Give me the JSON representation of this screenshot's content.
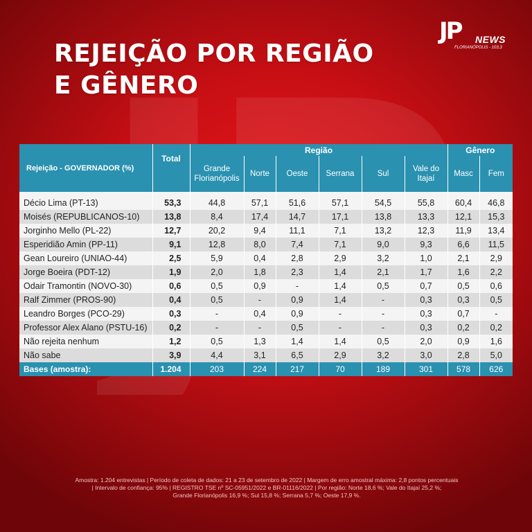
{
  "title_line1": "REJEIÇÃO POR REGIÃO",
  "title_line2": "E GÊNERO",
  "logo": {
    "mark": "JP",
    "word": "NEWS",
    "city": "FLORIANÓPOLIS - 103,3"
  },
  "colors": {
    "header": "#2a91b0",
    "background": "#c80f14",
    "row_light": "#f4f4f4",
    "row_dark": "#dcdcdc"
  },
  "chart_data": {
    "type": "table",
    "row_header_label": "Rejeição - GOVERNADOR (%)",
    "total_label": "Total",
    "group_labels": {
      "regiao": "Região",
      "genero": "Gênero"
    },
    "columns": [
      "Grande Florianópolis",
      "Norte",
      "Oeste",
      "Serrana",
      "Sul",
      "Vale do Itajaí",
      "Masc",
      "Fem"
    ],
    "rows": [
      {
        "name": "Décio Lima (PT-13)",
        "total": "53,3",
        "values": [
          "44,8",
          "57,1",
          "51,6",
          "57,1",
          "54,5",
          "55,8",
          "60,4",
          "46,8"
        ]
      },
      {
        "name": "Moisés (REPUBLICANOS-10)",
        "total": "13,8",
        "values": [
          "8,4",
          "17,4",
          "14,7",
          "17,1",
          "13,8",
          "13,3",
          "12,1",
          "15,3"
        ]
      },
      {
        "name": "Jorginho Mello (PL-22)",
        "total": "12,7",
        "values": [
          "20,2",
          "9,4",
          "11,1",
          "7,1",
          "13,2",
          "12,3",
          "11,9",
          "13,4"
        ]
      },
      {
        "name": "Esperidião Amin (PP-11)",
        "total": "9,1",
        "values": [
          "12,8",
          "8,0",
          "7,4",
          "7,1",
          "9,0",
          "9,3",
          "6,6",
          "11,5"
        ]
      },
      {
        "name": "Gean Loureiro (UNIAO-44)",
        "total": "2,5",
        "values": [
          "5,9",
          "0,4",
          "2,8",
          "2,9",
          "3,2",
          "1,0",
          "2,1",
          "2,9"
        ]
      },
      {
        "name": "Jorge Boeira (PDT-12)",
        "total": "1,9",
        "values": [
          "2,0",
          "1,8",
          "2,3",
          "1,4",
          "2,1",
          "1,7",
          "1,6",
          "2,2"
        ]
      },
      {
        "name": "Odair Tramontin (NOVO-30)",
        "total": "0,6",
        "values": [
          "0,5",
          "0,9",
          "-",
          "1,4",
          "0,5",
          "0,7",
          "0,5",
          "0,6"
        ]
      },
      {
        "name": "Ralf Zimmer (PROS-90)",
        "total": "0,4",
        "values": [
          "0,5",
          "-",
          "0,9",
          "1,4",
          "-",
          "0,3",
          "0,3",
          "0,5"
        ]
      },
      {
        "name": "Leandro Borges (PCO-29)",
        "total": "0,3",
        "values": [
          "-",
          "0,4",
          "0,9",
          "-",
          "-",
          "0,3",
          "0,7",
          "-"
        ]
      },
      {
        "name": "Professor Alex Alano (PSTU-16)",
        "total": "0,2",
        "values": [
          "-",
          "-",
          "0,5",
          "-",
          "-",
          "0,3",
          "0,2",
          "0,2"
        ]
      },
      {
        "name": "Não rejeita nenhum",
        "total": "1,2",
        "values": [
          "0,5",
          "1,3",
          "1,4",
          "1,4",
          "0,5",
          "2,0",
          "0,9",
          "1,6"
        ]
      },
      {
        "name": "Não sabe",
        "total": "3,9",
        "values": [
          "4,4",
          "3,1",
          "6,5",
          "2,9",
          "3,2",
          "3,0",
          "2,8",
          "5,0"
        ]
      }
    ],
    "bases": {
      "name": "Bases (amostra):",
      "total": "1.204",
      "values": [
        "203",
        "224",
        "217",
        "70",
        "189",
        "301",
        "578",
        "626"
      ]
    }
  },
  "footnote": {
    "line1": "Amostra: 1.204 entrevistas | Período de coleta de dados: 21 a 23 de setembro de 2022 | Margem de erro amostral máxima: 2,8 pontos percentuais",
    "line2": "| Intervalo de confiança: 95% | REGISTRO TSE nº SC-05951/2022 e BR-01116/2022 | Por região: Norte 18,6 %; Vale do Itajaí 25,2 %;",
    "line3": "Grande Florianópolis 16,9 %; Sul 15,8 %; Serrana 5,7 %; Oeste 17,9 %."
  }
}
